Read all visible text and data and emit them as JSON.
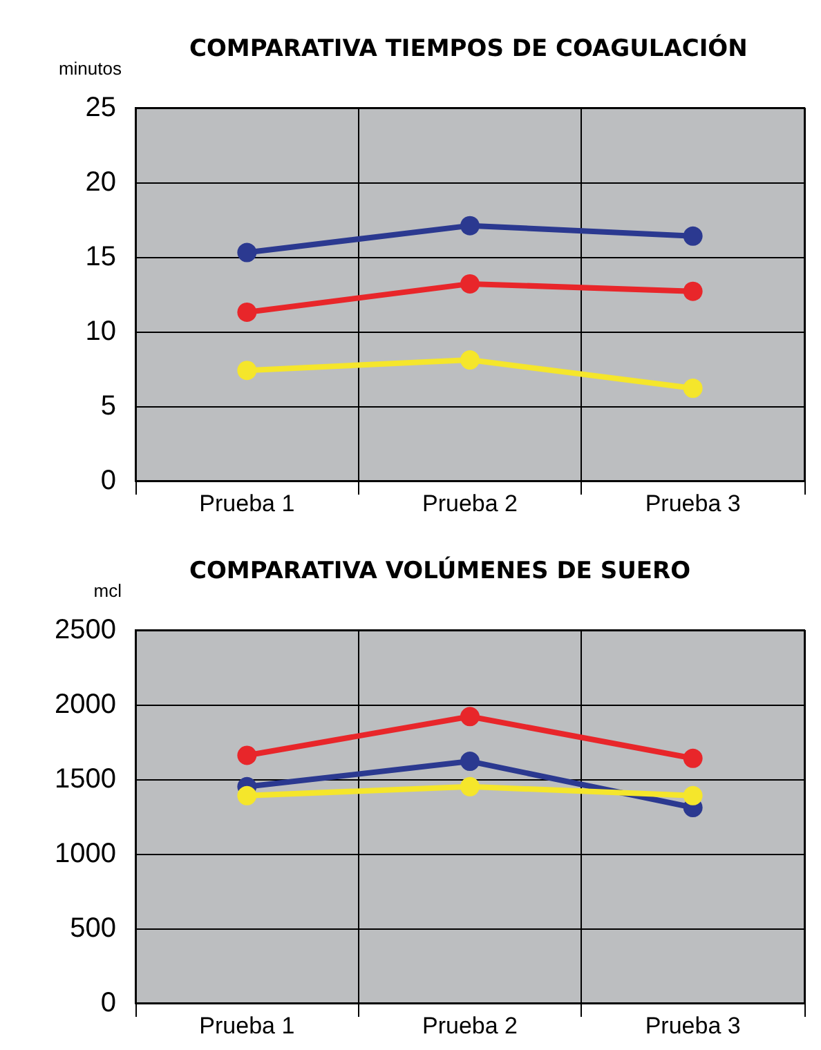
{
  "chart_data": [
    {
      "type": "line",
      "title": "COMPARATIVA TIEMPOS DE COAGULACIÓN",
      "ylabel": "minutos",
      "categories": [
        "Prueba 1",
        "Prueba 2",
        "Prueba 3"
      ],
      "series": [
        {
          "color": "#2b3990",
          "values": [
            15.3,
            17.1,
            16.4
          ]
        },
        {
          "color": "#e8262a",
          "values": [
            11.3,
            13.2,
            12.7
          ]
        },
        {
          "color": "#f5e62b",
          "values": [
            7.4,
            8.1,
            6.2
          ]
        }
      ],
      "ylim": [
        0,
        25
      ],
      "yticks": [
        0,
        5,
        10,
        15,
        20,
        25
      ],
      "grid": true,
      "marker": "circle",
      "line_style": "solid"
    },
    {
      "type": "line",
      "title": "COMPARATIVA VOLÚMENES DE SUERO",
      "ylabel": "mcl",
      "categories": [
        "Prueba 1",
        "Prueba 2",
        "Prueba 3"
      ],
      "series": [
        {
          "color": "#2b3990",
          "values": [
            1450,
            1620,
            1310
          ]
        },
        {
          "color": "#e8262a",
          "values": [
            1660,
            1920,
            1640
          ]
        },
        {
          "color": "#f5e62b",
          "values": [
            1390,
            1450,
            1390
          ]
        }
      ],
      "ylim": [
        0,
        2500
      ],
      "yticks": [
        0,
        500,
        1000,
        1500,
        2000,
        2500
      ],
      "grid": true,
      "marker": "circle",
      "line_style": "solid"
    }
  ]
}
